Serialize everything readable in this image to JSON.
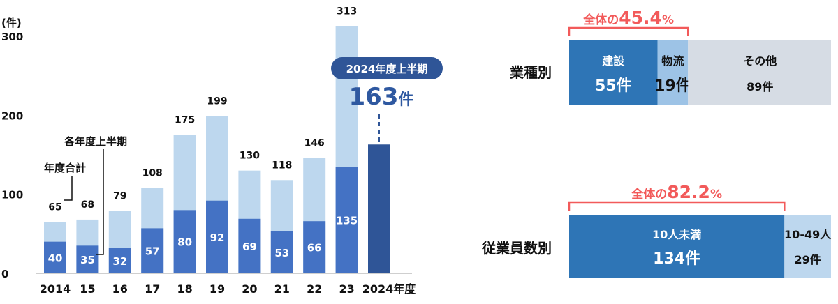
{
  "chart_data": [
    {
      "type": "bar",
      "title": "",
      "ylabel": "(件)",
      "xlabel": "",
      "ylim": [
        0,
        300
      ],
      "yticks": [
        "0",
        "100",
        "200",
        "300"
      ],
      "categories": [
        "2014",
        "15",
        "16",
        "17",
        "18",
        "19",
        "20",
        "21",
        "22",
        "23",
        "2024年度"
      ],
      "series": [
        {
          "name": "年度合計",
          "values": [
            65,
            68,
            79,
            108,
            175,
            199,
            130,
            118,
            146,
            313,
            null
          ]
        },
        {
          "name": "各年度上半期",
          "values": [
            40,
            35,
            32,
            57,
            80,
            92,
            69,
            53,
            66,
            135,
            163
          ]
        }
      ],
      "highlight": {
        "label": "2024年度上半期",
        "value": "163",
        "unit": "件"
      },
      "colors": {
        "total": "#bdd7ee",
        "half": "#4472c4",
        "latest": "#2f5597",
        "pill": "#2f5597"
      }
    },
    {
      "type": "bar",
      "title": "",
      "orientation": "horizontal-stacked",
      "rows": [
        {
          "label": "業種別",
          "segments": [
            {
              "name": "建設",
              "value": 55,
              "display": "55件",
              "color": "#2e75b6"
            },
            {
              "name": "物流",
              "value": 19,
              "display": "19件",
              "color": "#9dc3e6"
            },
            {
              "name": "その他",
              "value": 89,
              "display": "89件",
              "color": "#d6dce4"
            }
          ],
          "bracket": {
            "prefix": "全体の",
            "value": "45.4",
            "unit": "%",
            "spans": 2
          }
        },
        {
          "label": "従業員数別",
          "segments": [
            {
              "name": "10人未満",
              "value": 134,
              "display": "134件",
              "color": "#2e75b6"
            },
            {
              "name": "10-49人",
              "value": 29,
              "display": "29件",
              "color": "#bdd7ee"
            }
          ],
          "bracket": {
            "prefix": "全体の",
            "value": "82.2",
            "unit": "%",
            "spans": 1
          }
        }
      ],
      "colors": {
        "bracket": "#f25a5a"
      }
    }
  ]
}
